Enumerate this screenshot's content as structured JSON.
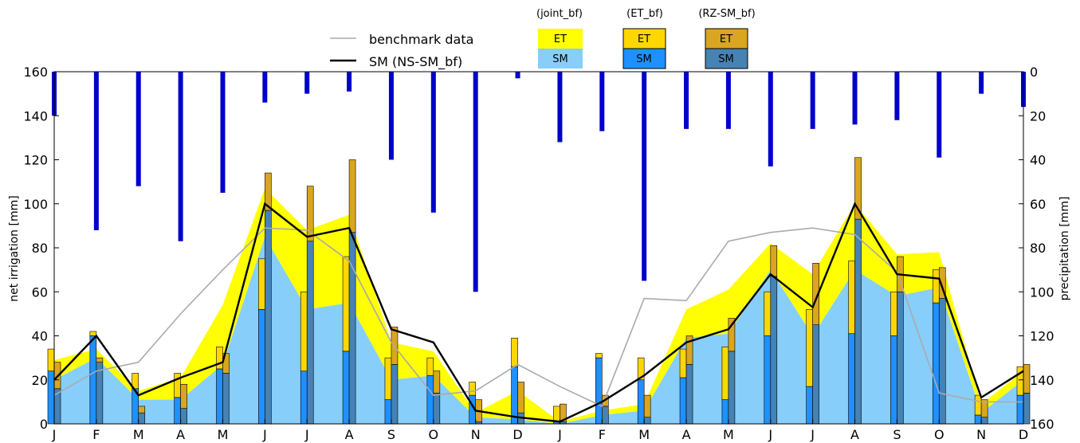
{
  "chart_data": {
    "type": "bar",
    "title": "",
    "xlabel": "",
    "ylabel": "net irrigation  [mm]",
    "y2label": "precipitation  [mm]",
    "ylim": [
      0,
      160
    ],
    "y2lim": [
      160,
      0
    ],
    "yticks": [
      "0",
      "20",
      "40",
      "60",
      "80",
      "100",
      "120",
      "140",
      "160"
    ],
    "y2ticks": [
      "160",
      "140",
      "120",
      "100",
      "80",
      "60",
      "40",
      "20",
      "0"
    ],
    "categories": [
      "J",
      "F",
      "M",
      "A",
      "M",
      "J",
      "J",
      "A",
      "S",
      "O",
      "N",
      "D",
      "J",
      "F",
      "M",
      "A",
      "M",
      "J",
      "J",
      "A",
      "S",
      "O",
      "N",
      "D"
    ],
    "legend": {
      "benchmark_label": "benchmark data",
      "sm_label": "SM (NS-SM_bf)",
      "groups": [
        {
          "title": "(joint_bf)",
          "et": "ET",
          "sm": "SM"
        },
        {
          "title": "(ET_bf)",
          "et": "ET",
          "sm": "SM"
        },
        {
          "title": "(RZ-SM_bf)",
          "et": "ET",
          "sm": "SM"
        }
      ]
    },
    "colors": {
      "joint_et": "#ffff00",
      "joint_sm": "#87cefa",
      "et_bf_et": "#ffd700",
      "et_bf_sm": "#1e90ff",
      "rz_et": "#daa520",
      "rz_sm": "#4682b4",
      "precip": "#0000cd",
      "benchmark": "#aaaaaa",
      "ns_sm": "#000000"
    },
    "series": [
      {
        "name": "benchmark data",
        "values": [
          13,
          24,
          28,
          50,
          70,
          89,
          88,
          74,
          37,
          13,
          15,
          27,
          17,
          8,
          57,
          56,
          83,
          87,
          89,
          86,
          69,
          14,
          10,
          10
        ]
      },
      {
        "name": "SM (NS-SM_bf)",
        "values": [
          20,
          40,
          13,
          21,
          28,
          100,
          85,
          89,
          43,
          37,
          6,
          3,
          1,
          10,
          22,
          37,
          43,
          68,
          53,
          100,
          68,
          66,
          12,
          24
        ]
      },
      {
        "name": "joint_bf SM",
        "values": [
          20,
          30,
          11,
          11,
          27,
          85,
          52,
          55,
          20,
          22,
          3,
          2,
          0,
          4,
          6,
          39,
          41,
          70,
          40,
          70,
          58,
          62,
          5,
          20
        ]
      },
      {
        "name": "joint_bf ET",
        "values": [
          9,
          4,
          4,
          10,
          27,
          22,
          36,
          40,
          17,
          11,
          2,
          13,
          1,
          2,
          3,
          13,
          20,
          12,
          28,
          30,
          19,
          16,
          4,
          4
        ]
      },
      {
        "name": "ET_bf SM",
        "values": [
          24,
          40,
          16,
          12,
          25,
          52,
          24,
          33,
          11,
          22,
          13,
          26,
          1,
          30,
          20,
          21,
          11,
          40,
          17,
          41,
          40,
          55,
          4,
          13
        ]
      },
      {
        "name": "ET_bf ET",
        "values": [
          10,
          2,
          7,
          11,
          10,
          23,
          36,
          43,
          19,
          8,
          6,
          13,
          7,
          2,
          10,
          13,
          24,
          20,
          35,
          33,
          20,
          15,
          9,
          13
        ]
      },
      {
        "name": "RZ-SM_bf SM",
        "values": [
          16,
          28,
          5,
          7,
          23,
          97,
          83,
          87,
          27,
          14,
          1,
          5,
          1,
          8,
          3,
          27,
          33,
          67,
          45,
          93,
          60,
          57,
          3,
          14
        ]
      },
      {
        "name": "RZ-SM_bf ET",
        "values": [
          12,
          2,
          3,
          11,
          9,
          17,
          25,
          33,
          17,
          10,
          10,
          14,
          8,
          5,
          10,
          13,
          15,
          14,
          28,
          28,
          16,
          14,
          8,
          13
        ]
      },
      {
        "name": "precipitation",
        "values": [
          20,
          72,
          52,
          77,
          55,
          14,
          10,
          9,
          40,
          64,
          100,
          3,
          32,
          27,
          95,
          26,
          26,
          43,
          26,
          24,
          22,
          39,
          10,
          16
        ]
      }
    ]
  }
}
